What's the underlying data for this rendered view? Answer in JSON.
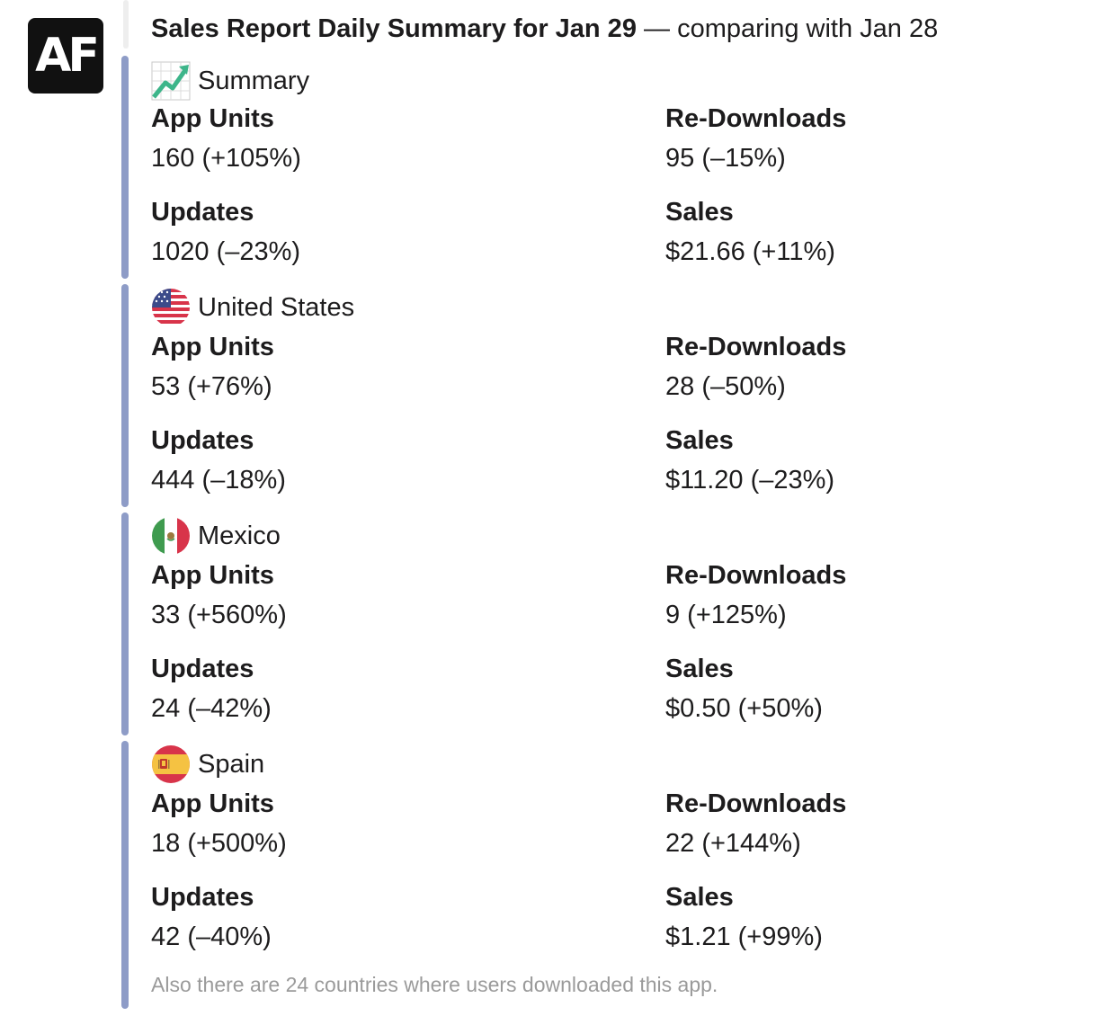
{
  "bot": {
    "avatar_text": "AF",
    "avatar_icon": "appfollow-logo-icon"
  },
  "message": {
    "title": "Sales Report Daily Summary for Jan 29",
    "subtitle": "— comparing with Jan 28"
  },
  "colors": {
    "attachment_bar": "#8e9cc7",
    "footer_text": "#9a9a9a"
  },
  "attachments": [
    {
      "icon": "chart-increasing-icon",
      "label": "Summary",
      "fields": {
        "app_units": {
          "title": "App Units",
          "value": "160 (+105%)"
        },
        "redownloads": {
          "title": "Re-Downloads",
          "value": "95 (–15%)"
        },
        "updates": {
          "title": "Updates",
          "value": "1020 (–23%)"
        },
        "sales": {
          "title": "Sales",
          "value": "$21.66 (+11%)"
        }
      }
    },
    {
      "icon": "flag-us-icon",
      "label": "United States",
      "fields": {
        "app_units": {
          "title": "App Units",
          "value": "53 (+76%)"
        },
        "redownloads": {
          "title": "Re-Downloads",
          "value": "28 (–50%)"
        },
        "updates": {
          "title": "Updates",
          "value": "444 (–18%)"
        },
        "sales": {
          "title": "Sales",
          "value": "$11.20 (–23%)"
        }
      }
    },
    {
      "icon": "flag-mexico-icon",
      "label": "Mexico",
      "fields": {
        "app_units": {
          "title": "App Units",
          "value": "33 (+560%)"
        },
        "redownloads": {
          "title": "Re-Downloads",
          "value": "9 (+125%)"
        },
        "updates": {
          "title": "Updates",
          "value": "24 (–42%)"
        },
        "sales": {
          "title": "Sales",
          "value": "$0.50 (+50%)"
        }
      }
    },
    {
      "icon": "flag-spain-icon",
      "label": "Spain",
      "fields": {
        "app_units": {
          "title": "App Units",
          "value": "18 (+500%)"
        },
        "redownloads": {
          "title": "Re-Downloads",
          "value": "22 (+144%)"
        },
        "updates": {
          "title": "Updates",
          "value": "42 (–40%)"
        },
        "sales": {
          "title": "Sales",
          "value": "$1.21 (+99%)"
        }
      },
      "footer": "Also there are 24 countries where users downloaded this app."
    }
  ]
}
